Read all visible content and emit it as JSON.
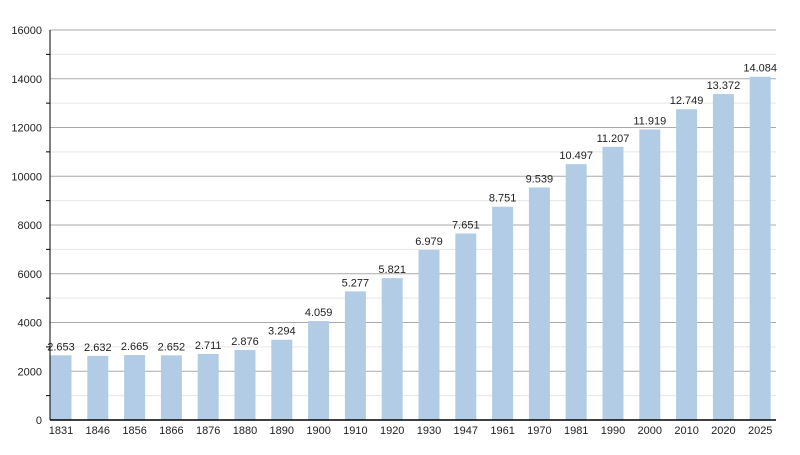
{
  "chart_data": {
    "type": "bar",
    "title": "",
    "xlabel": "",
    "ylabel": "",
    "ylim": [
      0,
      16000
    ],
    "yticks": [
      0,
      2000,
      4000,
      6000,
      8000,
      10000,
      12000,
      14000,
      16000
    ],
    "grid": true,
    "bar_color": "#b3cce6",
    "categories": [
      "1831",
      "1846",
      "1856",
      "1866",
      "1876",
      "1880",
      "1890",
      "1900",
      "1910",
      "1920",
      "1930",
      "1947",
      "1961",
      "1970",
      "1981",
      "1990",
      "2000",
      "2010",
      "2020",
      "2025"
    ],
    "values": [
      2653,
      2632,
      2665,
      2652,
      2711,
      2876,
      3294,
      4059,
      5277,
      5821,
      6979,
      7651,
      8751,
      9539,
      10497,
      11207,
      11919,
      12749,
      13372,
      14084
    ],
    "labels": [
      "2.653",
      "2.632",
      "2.665",
      "2.652",
      "2.711",
      "2.876",
      "3.294",
      "4.059",
      "5.277",
      "5.821",
      "6.979",
      "7.651",
      "8.751",
      "9.539",
      "10.497",
      "11.207",
      "11.919",
      "12.749",
      "13.372",
      "14.084"
    ]
  }
}
